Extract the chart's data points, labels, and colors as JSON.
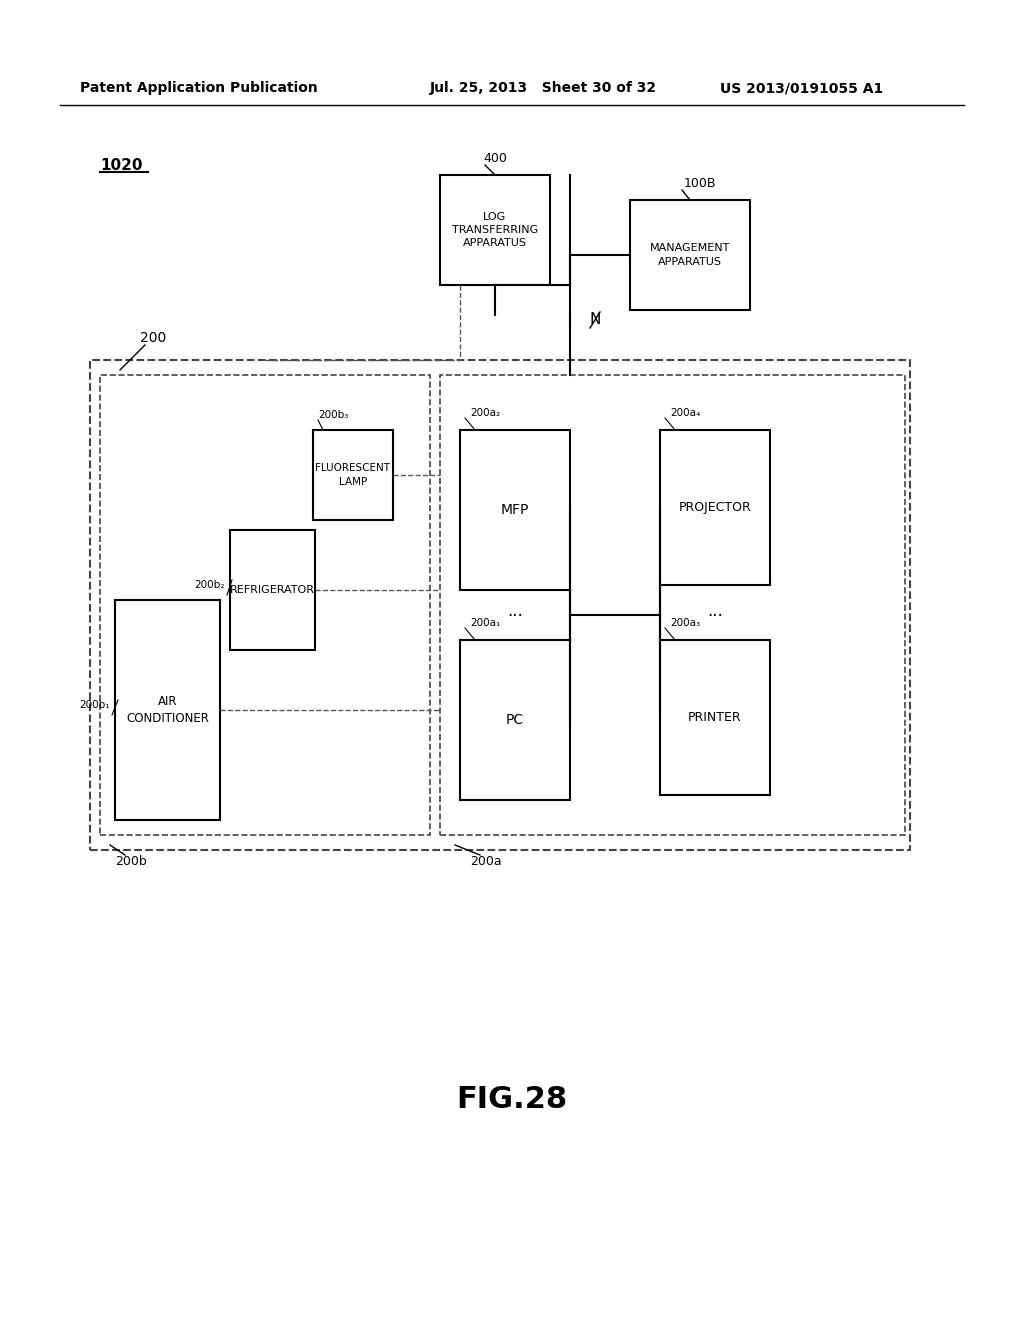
{
  "background_color": "#ffffff",
  "header_left": "Patent Application Publication",
  "header_mid": "Jul. 25, 2013   Sheet 30 of 32",
  "header_right": "US 2013/0191055 A1",
  "fig_label": "FIG.28",
  "system_label": "1020",
  "network_label": "N",
  "outer_box_200_label": "200",
  "group_200a_label": "200a",
  "group_200b_label": "200b",
  "box_400_label": "400",
  "box_400_text": "LOG\nTRANSFERRING\nAPPARATUS",
  "box_100B_label": "100B",
  "box_100B_text": "MANAGEMENT\nAPPARATUS",
  "box_ac_label": "200b₁",
  "box_ac_text": "AIR\nCONDITIONER",
  "box_refrig_label": "200b₂",
  "box_refrig_text": "REFRIGERATOR",
  "box_fluor_label": "200b₃",
  "box_fluor_text": "FLUORESCENT\nLAMP",
  "box_pc_label": "200a₁",
  "box_pc_text": "PC",
  "box_mfp_label": "200a₂",
  "box_mfp_text": "MFP",
  "box_printer_label": "200a₃",
  "box_printer_text": "PRINTER",
  "box_proj_label": "200a₄",
  "box_proj_text": "PROJECTOR",
  "line_color": "#000000",
  "dashed_color": "#555555"
}
